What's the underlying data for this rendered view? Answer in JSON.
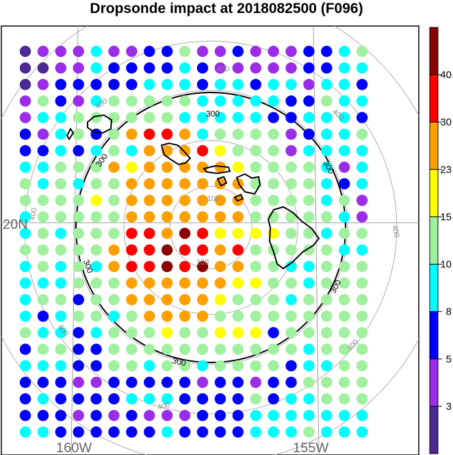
{
  "title": "Dropsonde impact at 2018082500 (F096)",
  "map_labels": {
    "lat_20n": "20N",
    "lon_160w": "160W",
    "lon_155w": "155W"
  },
  "range_ring_labels": [
    "100",
    "100",
    "300",
    "300",
    "300",
    "300",
    "300",
    "300",
    "400",
    "400",
    "400",
    "400",
    "400",
    "400",
    "400",
    "400",
    "400",
    "400",
    "400"
  ],
  "colorbar": {
    "tick_labels": [
      "40",
      "30",
      "23",
      "15",
      "10",
      "8",
      "5",
      "3"
    ],
    "colors": [
      "#4b2a91",
      "#9b2de8",
      "#0000ff",
      "#00ffff",
      "#a0f0a0",
      "#ffff00",
      "#ffa000",
      "#ff0000",
      "#8b0000"
    ]
  },
  "chart_data": {
    "type": "heatmap",
    "title": "Dropsonde impact at 2018082500 (F096)",
    "legend_levels": [
      3,
      5,
      8,
      10,
      15,
      23,
      30,
      40
    ],
    "grid_rows": [
      "01113112241121112234",
      "00113222232111112233",
      "01222223332332331332",
      "14213444443333322433",
      "13344444433333223332",
      "21342467763444412334",
      "22323436667544413333",
      "33444656666654444313",
      "43434466666664444323",
      "44445466666664444341",
      "34444466666664444431",
      "34344477687555544344",
      "44444677877674444433",
      "34343677878664433444",
      "33344466666655443444",
      "34424466666544434444",
      "32344346666444444444",
      "43323444544555244444",
      "24422444444444443444",
      "33322443443444423344",
      "22211222221221224444",
      "23222233322224233444",
      "22212121112223333333",
      "33222222322223334333"
    ]
  }
}
